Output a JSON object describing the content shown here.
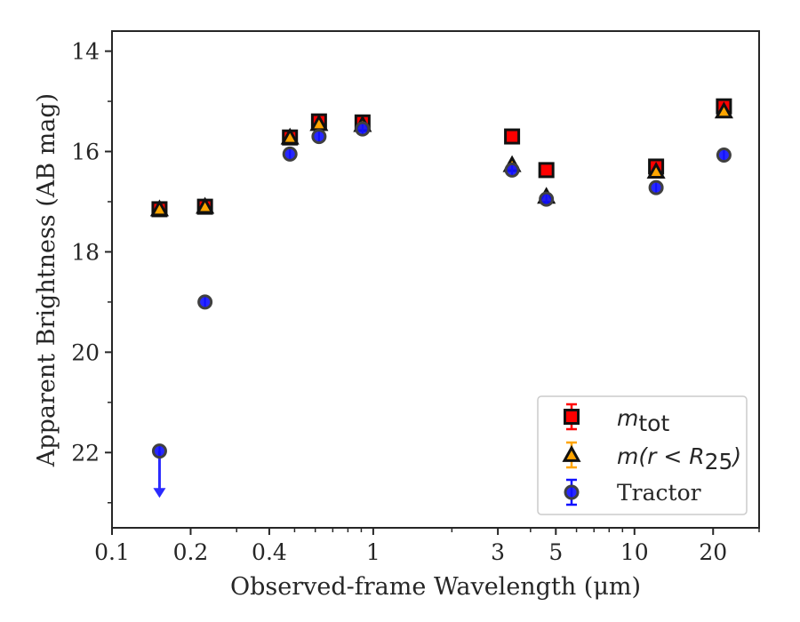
{
  "chart_data": {
    "type": "scatter",
    "xlabel": "Observed-frame Wavelength (μm)",
    "ylabel": "Apparent Brightness (AB mag)",
    "x_scale": "log",
    "xlim": [
      0.1,
      30
    ],
    "ylim": [
      23.5,
      13.6
    ],
    "x_ticks": [
      0.1,
      0.2,
      0.4,
      1,
      3,
      5,
      10,
      20
    ],
    "x_tick_labels": [
      "0.1",
      "0.2",
      "0.4",
      "1",
      "3",
      "5",
      "10",
      "20"
    ],
    "y_ticks": [
      14,
      16,
      18,
      20,
      22
    ],
    "y_tick_labels": [
      "14",
      "16",
      "18",
      "20",
      "22"
    ],
    "legend_position": "lower right",
    "series": [
      {
        "name": "m_tot",
        "legend_main": "m",
        "legend_sub": "tot",
        "marker": "square",
        "color": "#ff0000",
        "edge_color": "#111111",
        "x": [
          0.152,
          0.227,
          0.48,
          0.62,
          0.91,
          3.4,
          4.6,
          12.1,
          22.0
        ],
        "y": [
          17.15,
          17.1,
          15.72,
          15.4,
          15.42,
          15.7,
          16.37,
          16.3,
          15.1
        ]
      },
      {
        "name": "m(r < R_25)",
        "legend_main": "m(r < R",
        "legend_sub": "25",
        "legend_end": ")",
        "marker": "triangle",
        "color": "#ffa500",
        "edge_color": "#111111",
        "x": [
          0.152,
          0.227,
          0.48,
          0.62,
          0.91,
          3.4,
          4.6,
          12.1,
          22.0
        ],
        "y": [
          17.15,
          17.1,
          15.72,
          15.45,
          15.47,
          16.27,
          16.9,
          16.4,
          15.2
        ]
      },
      {
        "name": "Tractor",
        "legend_main": "Tractor",
        "marker": "circle",
        "color": "#1010ff",
        "edge_color": "#404040",
        "x": [
          0.152,
          0.227,
          0.48,
          0.62,
          0.91,
          3.4,
          4.6,
          12.1,
          22.0
        ],
        "y": [
          21.97,
          19.0,
          16.05,
          15.7,
          15.55,
          16.37,
          16.95,
          16.72,
          16.07
        ],
        "upper_limit_index": 0
      }
    ]
  }
}
